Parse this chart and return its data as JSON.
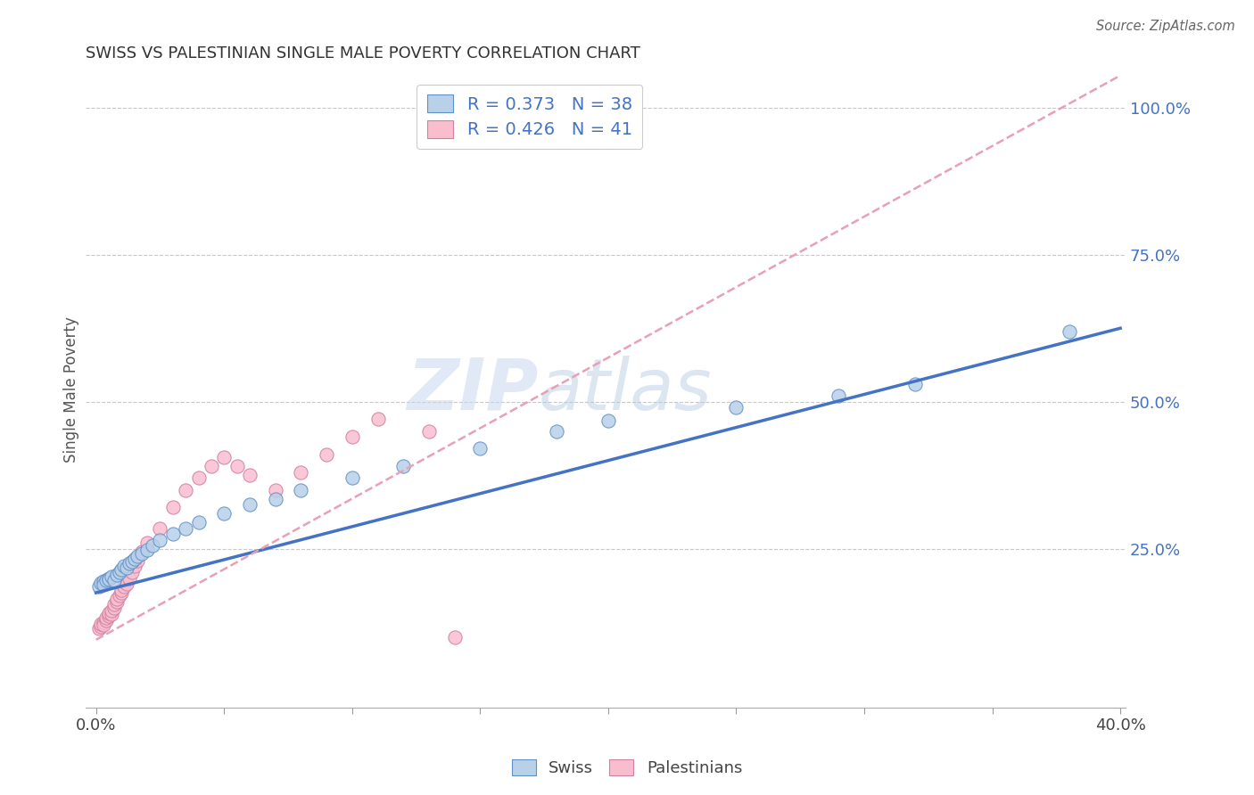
{
  "title": "SWISS VS PALESTINIAN SINGLE MALE POVERTY CORRELATION CHART",
  "source": "Source: ZipAtlas.com",
  "ylabel": "Single Male Poverty",
  "xlim": [
    -0.004,
    0.402
  ],
  "ylim": [
    -0.02,
    1.06
  ],
  "xticks": [
    0.0,
    0.05,
    0.1,
    0.15,
    0.2,
    0.25,
    0.3,
    0.35,
    0.4
  ],
  "xtick_labels": [
    "0.0%",
    "",
    "",
    "",
    "",
    "",
    "",
    "",
    "40.0%"
  ],
  "ytick_right": [
    0.25,
    0.5,
    0.75,
    1.0
  ],
  "ytick_right_labels": [
    "25.0%",
    "50.0%",
    "75.0%",
    "100.0%"
  ],
  "swiss_R": 0.373,
  "swiss_N": 38,
  "pal_R": 0.426,
  "pal_N": 41,
  "swiss_color": "#b8d0e8",
  "pal_color": "#f9bece",
  "swiss_line_color": "#4472c4",
  "pal_line_color": "#e8a0b4",
  "watermark_zip": "ZIP",
  "watermark_atlas": "atlas",
  "bg_color": "#ffffff",
  "grid_color": "#c8c8c8",
  "swiss_x": [
    0.001,
    0.002,
    0.003,
    0.003,
    0.004,
    0.005,
    0.005,
    0.006,
    0.007,
    0.008,
    0.009,
    0.01,
    0.011,
    0.012,
    0.013,
    0.014,
    0.015,
    0.016,
    0.018,
    0.02,
    0.022,
    0.025,
    0.03,
    0.035,
    0.04,
    0.05,
    0.06,
    0.07,
    0.08,
    0.1,
    0.12,
    0.15,
    0.18,
    0.2,
    0.25,
    0.29,
    0.32,
    0.38
  ],
  "swiss_y": [
    0.185,
    0.192,
    0.195,
    0.188,
    0.196,
    0.2,
    0.198,
    0.202,
    0.197,
    0.205,
    0.21,
    0.215,
    0.22,
    0.218,
    0.225,
    0.228,
    0.232,
    0.238,
    0.242,
    0.248,
    0.255,
    0.265,
    0.275,
    0.285,
    0.295,
    0.31,
    0.325,
    0.335,
    0.35,
    0.37,
    0.39,
    0.42,
    0.45,
    0.468,
    0.49,
    0.51,
    0.53,
    0.62
  ],
  "pal_x": [
    0.001,
    0.002,
    0.002,
    0.003,
    0.003,
    0.004,
    0.004,
    0.005,
    0.005,
    0.006,
    0.006,
    0.007,
    0.007,
    0.008,
    0.008,
    0.009,
    0.01,
    0.01,
    0.011,
    0.012,
    0.013,
    0.014,
    0.015,
    0.016,
    0.018,
    0.02,
    0.025,
    0.03,
    0.035,
    0.04,
    0.045,
    0.05,
    0.055,
    0.06,
    0.07,
    0.08,
    0.09,
    0.1,
    0.11,
    0.13,
    0.14
  ],
  "pal_y": [
    0.115,
    0.118,
    0.122,
    0.125,
    0.12,
    0.128,
    0.132,
    0.135,
    0.14,
    0.138,
    0.145,
    0.15,
    0.155,
    0.16,
    0.165,
    0.17,
    0.175,
    0.18,
    0.185,
    0.19,
    0.2,
    0.21,
    0.22,
    0.23,
    0.245,
    0.26,
    0.285,
    0.32,
    0.35,
    0.37,
    0.39,
    0.405,
    0.39,
    0.375,
    0.35,
    0.38,
    0.41,
    0.44,
    0.47,
    0.45,
    0.1
  ],
  "swiss_trend_x": [
    0.0,
    0.4
  ],
  "swiss_trend_y": [
    0.175,
    0.625
  ],
  "pal_trend_x": [
    0.0,
    0.4
  ],
  "pal_trend_y": [
    0.095,
    1.055
  ]
}
